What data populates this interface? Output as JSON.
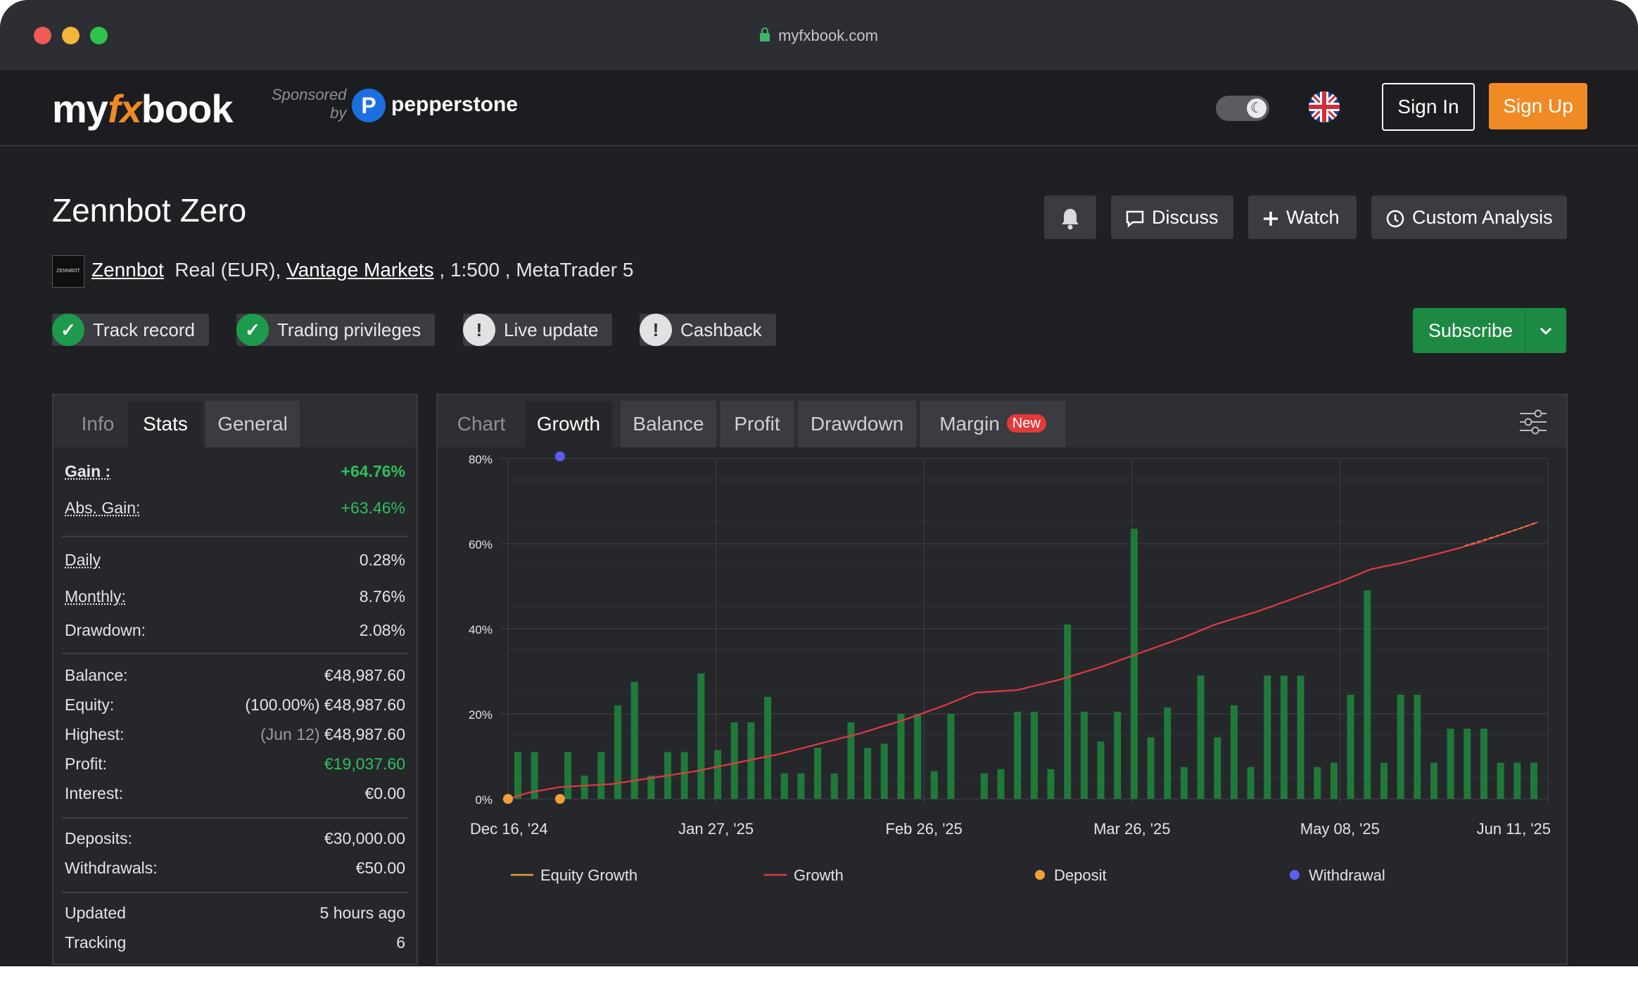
{
  "browser": {
    "url": "myfxbook.com"
  },
  "header": {
    "logo": {
      "pre": "my",
      "fx": "fx",
      "post": "book"
    },
    "sponsored_line1": "Sponsored",
    "sponsored_line2": "by",
    "sponsor_mark": "P",
    "sponsor_name": "pepperstone",
    "sign_in": "Sign In",
    "sign_up": "Sign Up"
  },
  "system": {
    "title": "Zennbot Zero",
    "actions": {
      "discuss": "Discuss",
      "watch": "Watch",
      "custom_analysis": "Custom Analysis"
    },
    "avatar_text": "ZENNBOT",
    "owner": "Zennbot",
    "account_type": "Real (EUR),",
    "broker": "Vantage Markets",
    "leverage_platform": ", 1:500 , MetaTrader 5",
    "badges": [
      {
        "label": "Track record",
        "state": "verified"
      },
      {
        "label": "Trading privileges",
        "state": "verified"
      },
      {
        "label": "Live update",
        "state": "warning"
      },
      {
        "label": "Cashback",
        "state": "warning"
      }
    ],
    "subscribe": "Subscribe"
  },
  "left_panel": {
    "tabs": [
      "Info",
      "Stats",
      "General"
    ],
    "stats": {
      "gain_label": "Gain :",
      "gain_value": "+64.76%",
      "abs_gain_label": "Abs. Gain:",
      "abs_gain_value": "+63.46%",
      "daily_label": "Daily",
      "daily_value": "0.28%",
      "monthly_label": "Monthly:",
      "monthly_value": "8.76%",
      "drawdown_label": "Drawdown:",
      "drawdown_value": "2.08%",
      "balance_label": "Balance:",
      "balance_value": "€48,987.60",
      "equity_label": "Equity:",
      "equity_value": "(100.00%) €48,987.60",
      "highest_label": "Highest:",
      "highest_date": "(Jun 12)",
      "highest_value": "€48,987.60",
      "profit_label": "Profit:",
      "profit_value": "€19,037.60",
      "interest_label": "Interest:",
      "interest_value": "€0.00",
      "deposits_label": "Deposits:",
      "deposits_value": "€30,000.00",
      "withdrawals_label": "Withdrawals:",
      "withdrawals_value": "€50.00",
      "updated_label": "Updated",
      "updated_value": "5 hours ago",
      "tracking_label": "Tracking",
      "tracking_value": "6"
    }
  },
  "chart_panel": {
    "tabs": [
      "Chart",
      "Growth",
      "Balance",
      "Profit",
      "Drawdown",
      "Margin"
    ],
    "new_badge": "New",
    "active_tab": "Growth"
  },
  "chart_data": {
    "type": "line",
    "y_ticks": [
      "0%",
      "20%",
      "40%",
      "60%",
      "80%"
    ],
    "ylim": [
      0,
      80
    ],
    "x_ticks": [
      "Dec 16, '24",
      "Jan 27, '25",
      "Feb 26, '25",
      "Mar 26, '25",
      "May 08, '25",
      "Jun 11, '25"
    ],
    "grid": true,
    "legend_position": "bottom",
    "legend": [
      "Equity Growth",
      "Growth",
      "Deposit",
      "Withdrawal"
    ],
    "colors": {
      "bars": "#1f7a3a",
      "growth": "#e23a44",
      "equity": "#e8a23a",
      "deposit": "#f0a03a",
      "withdrawal": "#5a5ff0",
      "grid": "#3c3e43"
    },
    "bars": [
      11,
      11,
      0,
      11,
      5.5,
      11,
      22,
      27.5,
      5.5,
      11,
      11,
      29.5,
      11.5,
      18,
      18,
      24,
      6,
      6,
      12,
      6,
      18,
      12,
      13,
      20,
      20,
      6.5,
      20,
      0,
      6,
      7,
      20.5,
      20.5,
      7,
      41,
      20.5,
      13.5,
      20.5,
      63.5,
      14.5,
      21.5,
      7.5,
      29,
      14.5,
      22,
      7.5,
      29,
      29,
      29,
      7.5,
      8.5,
      24.5,
      49,
      8.5,
      24.5,
      24.5,
      8.5,
      16.5,
      16.5,
      16.5,
      8.5,
      8.5,
      8.5
    ],
    "growth": [
      [
        0,
        0
      ],
      [
        0.02,
        1.5
      ],
      [
        0.05,
        2.8
      ],
      [
        0.1,
        3.5
      ],
      [
        0.14,
        5
      ],
      [
        0.18,
        6.5
      ],
      [
        0.22,
        8.5
      ],
      [
        0.26,
        10.5
      ],
      [
        0.3,
        13
      ],
      [
        0.34,
        15.5
      ],
      [
        0.38,
        18.5
      ],
      [
        0.42,
        22
      ],
      [
        0.45,
        25
      ],
      [
        0.49,
        25.6
      ],
      [
        0.53,
        28
      ],
      [
        0.57,
        31
      ],
      [
        0.61,
        34.5
      ],
      [
        0.65,
        38
      ],
      [
        0.68,
        41
      ],
      [
        0.72,
        44
      ],
      [
        0.76,
        47.5
      ],
      [
        0.8,
        51
      ],
      [
        0.83,
        54
      ],
      [
        0.86,
        55.5
      ],
      [
        0.9,
        58
      ],
      [
        0.93,
        60
      ],
      [
        0.96,
        62.5
      ],
      [
        0.99,
        65
      ]
    ],
    "equity": [
      [
        0.92,
        59.5
      ],
      [
        0.96,
        62.5
      ],
      [
        0.99,
        65
      ]
    ],
    "deposits": [
      [
        0,
        0
      ],
      [
        0.05,
        0
      ]
    ],
    "withdrawals": [
      [
        0.05,
        80.5
      ]
    ]
  }
}
